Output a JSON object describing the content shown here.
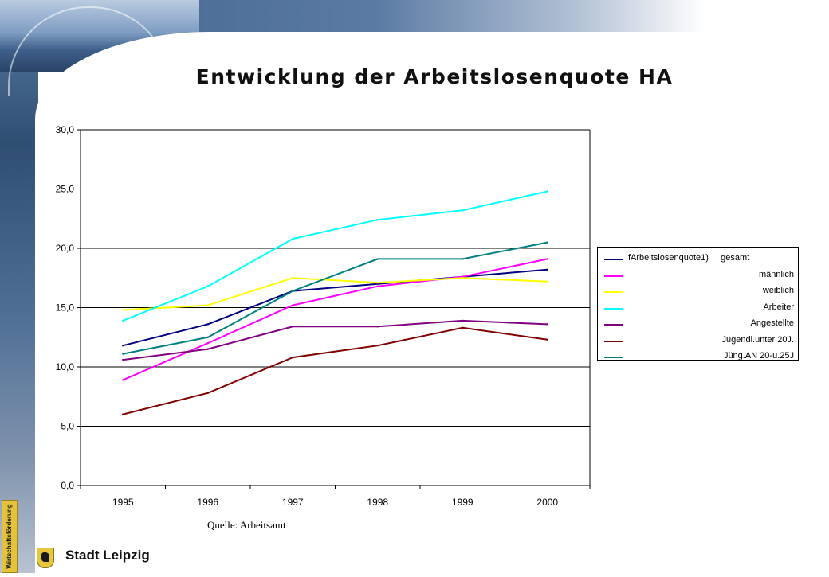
{
  "slide": {
    "title": "Entwicklung der Arbeitslosenquote HA",
    "source": "Quelle: Arbeitsamt",
    "brand": "Stadt Leipzig",
    "side_tab": "Wirtschaftsförderung"
  },
  "chart_data": {
    "type": "line",
    "title": "Entwicklung der Arbeitslosenquote HA",
    "xlabel": "",
    "ylabel": "",
    "categories": [
      "1995",
      "1996",
      "1997",
      "1998",
      "1999",
      "2000"
    ],
    "ylim": [
      0,
      30
    ],
    "yticks": [
      "0,0",
      "5,0",
      "10,0",
      "15,0",
      "20,0",
      "25,0",
      "30,0"
    ],
    "grid": "horizontal",
    "legend_position": "right",
    "series": [
      {
        "name": "fArbeitslosenquote1)     gesamt",
        "color": "#000080",
        "values": [
          11.8,
          13.6,
          16.4,
          17.0,
          17.6,
          18.2
        ]
      },
      {
        "name": "männlich",
        "color": "#ff00ff",
        "values": [
          8.9,
          12.0,
          15.2,
          16.8,
          17.6,
          19.1
        ]
      },
      {
        "name": "weiblich",
        "color": "#ffff00",
        "values": [
          14.8,
          15.2,
          17.5,
          17.1,
          17.5,
          17.2
        ]
      },
      {
        "name": "Arbeiter",
        "color": "#00ffff",
        "values": [
          13.9,
          16.8,
          20.8,
          22.4,
          23.2,
          24.8
        ]
      },
      {
        "name": "Angestellte",
        "color": "#800080",
        "values": [
          10.6,
          11.5,
          13.4,
          13.4,
          13.9,
          13.6
        ]
      },
      {
        "name": "Jugendl.unter 20J.",
        "color": "#800000",
        "values": [
          6.0,
          7.8,
          10.8,
          11.8,
          13.3,
          12.3
        ]
      },
      {
        "name": "Jüng.AN 20-u.25J",
        "color": "#008080",
        "values": [
          11.1,
          12.5,
          16.4,
          19.1,
          19.1,
          20.5
        ]
      }
    ]
  }
}
